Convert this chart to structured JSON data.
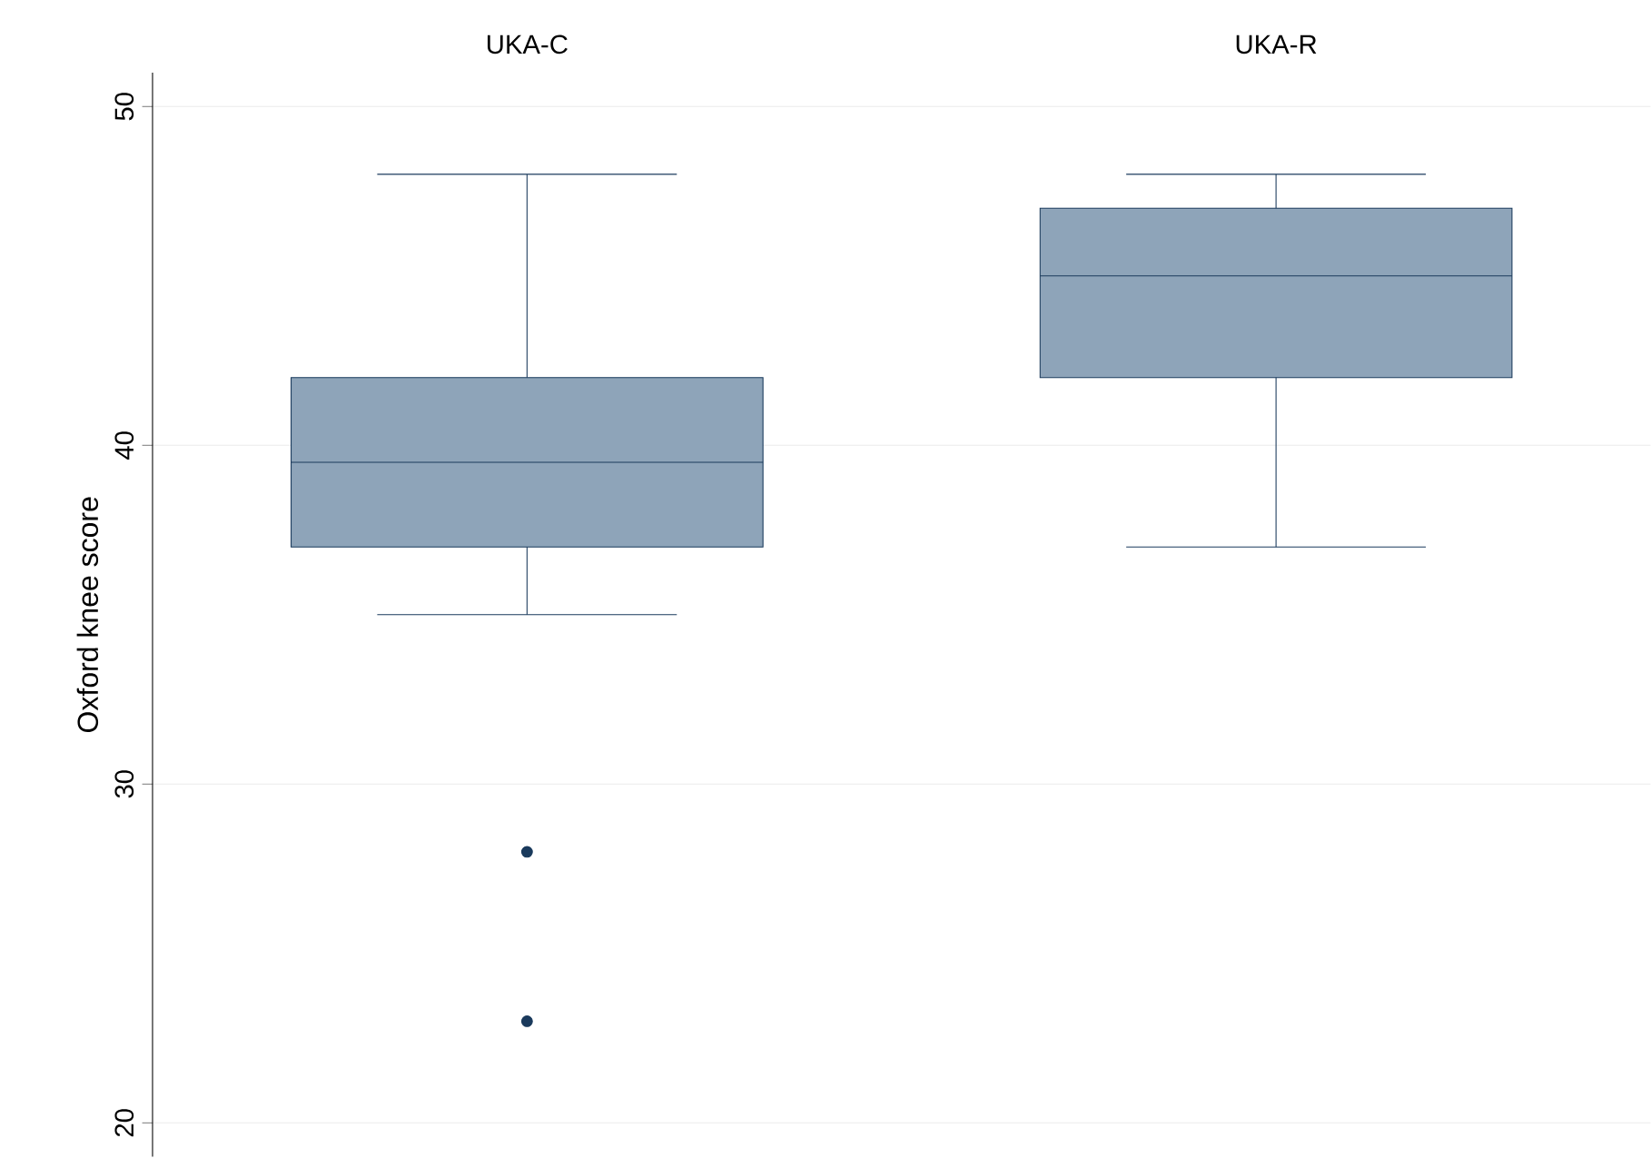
{
  "chart_data": {
    "type": "box",
    "ylabel": "Oxford knee score",
    "categories": [
      "UKA-C",
      "UKA-R"
    ],
    "boxes": [
      {
        "low": 35,
        "q1": 37,
        "median": 39.5,
        "q3": 42,
        "high": 48,
        "outliers": [
          28,
          23
        ]
      },
      {
        "low": 37,
        "q1": 42,
        "median": 45,
        "q3": 47,
        "high": 48
      }
    ],
    "color": "#8ea4b9",
    "ylim": [
      19,
      51
    ],
    "yticks": [
      20,
      30,
      40,
      50
    ],
    "grid": "y"
  }
}
